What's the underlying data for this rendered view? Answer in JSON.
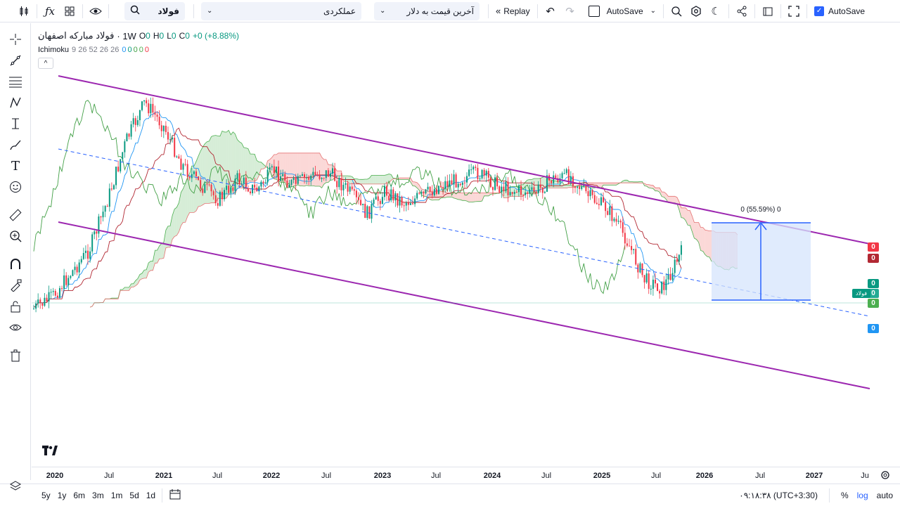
{
  "toolbar": {
    "symbol_search": "فولاد",
    "indicator_select": "عملکردی",
    "price_select": "آخرین قیمت به دلار",
    "replay_label": "Replay",
    "autosave_label": "AutoSave",
    "autosave_label_right": "AutoSave",
    "icons": [
      "candles-icon",
      "fx-icon",
      "grid-icon",
      "eye-icon",
      "search-icon",
      "undo-icon",
      "redo-icon",
      "replay-icon",
      "compare-icon",
      "settings-icon",
      "moon-icon",
      "share-icon",
      "snapshot-icon",
      "fullscreen-icon"
    ]
  },
  "legend": {
    "symbol_name": "فولاد مبارکه اصفهان",
    "interval": "· 1W",
    "o_label": "O",
    "o_value": "0",
    "h_label": "H",
    "h_value": "0",
    "l_label": "L",
    "l_value": "0",
    "c_label": "C",
    "c_value": "0",
    "change": "+0 (+8.88%)",
    "indicator_name": "Ichimoku",
    "indicator_params": "9 26 52 26 26",
    "indicator_values": [
      "0",
      "0",
      "0",
      "0",
      "0"
    ],
    "collapse_label": "^"
  },
  "measurement": {
    "label": "0 (55.59%) 0"
  },
  "price_badges": [
    {
      "label": "0",
      "color": "#f23645"
    },
    {
      "label": "0",
      "color": "#b22833"
    },
    {
      "label": "0",
      "color": "#089981"
    },
    {
      "label": "0",
      "color": "#22ab94"
    },
    {
      "label": "0",
      "color": "#4caf50"
    },
    {
      "label": "0",
      "color": "#2196f3"
    }
  ],
  "symbol_badge": "فولاد",
  "time_axis": {
    "ticks": [
      {
        "label": "2020",
        "year": true
      },
      {
        "label": "Jul",
        "year": false
      },
      {
        "label": "2021",
        "year": true
      },
      {
        "label": "Jul",
        "year": false
      },
      {
        "label": "2022",
        "year": true
      },
      {
        "label": "Jul",
        "year": false
      },
      {
        "label": "2023",
        "year": true
      },
      {
        "label": "Jul",
        "year": false
      },
      {
        "label": "2024",
        "year": true
      },
      {
        "label": "Jul",
        "year": false
      },
      {
        "label": "2025",
        "year": true
      },
      {
        "label": "Jul",
        "year": false
      },
      {
        "label": "2026",
        "year": true
      },
      {
        "label": "Jul",
        "year": false
      },
      {
        "label": "2027",
        "year": true
      },
      {
        "label": "Ju",
        "year": false
      }
    ]
  },
  "bottom": {
    "ranges": [
      "5y",
      "1y",
      "6m",
      "3m",
      "1m",
      "5d",
      "1d"
    ],
    "clock": "۰۹:۱۸:۳۸ (UTC+3:30)",
    "percent_label": "%",
    "log_label": "log",
    "auto_label": "auto"
  },
  "colors": {
    "bull": "#089981",
    "bear": "#f23645",
    "channel": "#9c27b0",
    "conversion": "#2196f3",
    "base": "#b22833",
    "lagging": "#43a047",
    "measure_fill": "#d6e4fc"
  },
  "chart_data": {
    "type": "candlestick",
    "interval": "1W",
    "x_ticks": [
      "2020",
      "Jul",
      "2021",
      "Jul",
      "2022",
      "Jul",
      "2023",
      "Jul",
      "2024",
      "Jul",
      "2025",
      "Jul",
      "2026",
      "Jul",
      "2027"
    ],
    "y_labels_visible": false,
    "price_shape": [
      0.82,
      0.78,
      0.7,
      0.62,
      0.45,
      0.25,
      0.12,
      0.2,
      0.33,
      0.4,
      0.45,
      0.38,
      0.42,
      0.35,
      0.4,
      0.37,
      0.36,
      0.42,
      0.5,
      0.42,
      0.46,
      0.44,
      0.4,
      0.38,
      0.36,
      0.4,
      0.42,
      0.43,
      0.38,
      0.37,
      0.44,
      0.48,
      0.58,
      0.72,
      0.75,
      0.63
    ]
  }
}
